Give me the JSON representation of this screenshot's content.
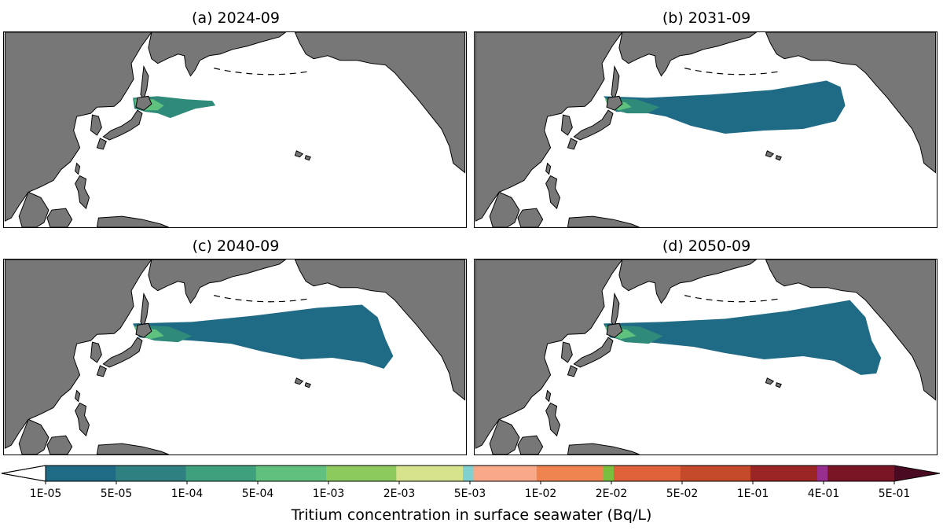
{
  "panels": [
    {
      "id": "a",
      "title": "(a) 2024-09",
      "plume_extent": "near-coast"
    },
    {
      "id": "b",
      "title": "(b) 2031-09",
      "plume_extent": "mid-pacific"
    },
    {
      "id": "c",
      "title": "(c) 2040-09",
      "plume_extent": "wide"
    },
    {
      "id": "d",
      "title": "(d) 2050-09",
      "plume_extent": "widest"
    }
  ],
  "colors": {
    "land": "#777777",
    "ocean": "#ffffff",
    "coast": "#000000",
    "plume_low": "#1f6b85",
    "plume_mid": "#2f8a7a",
    "plume_high": "#5ec27e"
  },
  "colorbar": {
    "title": "Tritium concentration in surface seawater (Bq/L)",
    "tick_labels": [
      "1E-05",
      "5E-05",
      "1E-04",
      "5E-04",
      "1E-03",
      "2E-03",
      "5E-03",
      "1E-02",
      "2E-02",
      "5E-02",
      "1E-01",
      "4E-01",
      "5E-01"
    ],
    "segments": [
      {
        "color": "#1f6b85",
        "weight": 1
      },
      {
        "color": "#2e8180",
        "weight": 1
      },
      {
        "color": "#3fa07d",
        "weight": 1
      },
      {
        "color": "#62c07f",
        "weight": 1
      },
      {
        "color": "#8cca5e",
        "weight": 1
      },
      {
        "color": "#d6e38c",
        "weight": 0.95
      },
      {
        "color": "#7fd0cf",
        "weight": 0.15
      },
      {
        "color": "#f7a98a",
        "weight": 0.9
      },
      {
        "color": "#ef8450",
        "weight": 0.95
      },
      {
        "color": "#7bbf3f",
        "weight": 0.15
      },
      {
        "color": "#e0623a",
        "weight": 0.95
      },
      {
        "color": "#c54a2c",
        "weight": 1
      },
      {
        "color": "#9b2424",
        "weight": 0.95
      },
      {
        "color": "#982e8e",
        "weight": 0.15
      },
      {
        "color": "#7a1526",
        "weight": 0.95
      }
    ],
    "under_color": "#ffffff",
    "over_color": "#4a0b22"
  }
}
